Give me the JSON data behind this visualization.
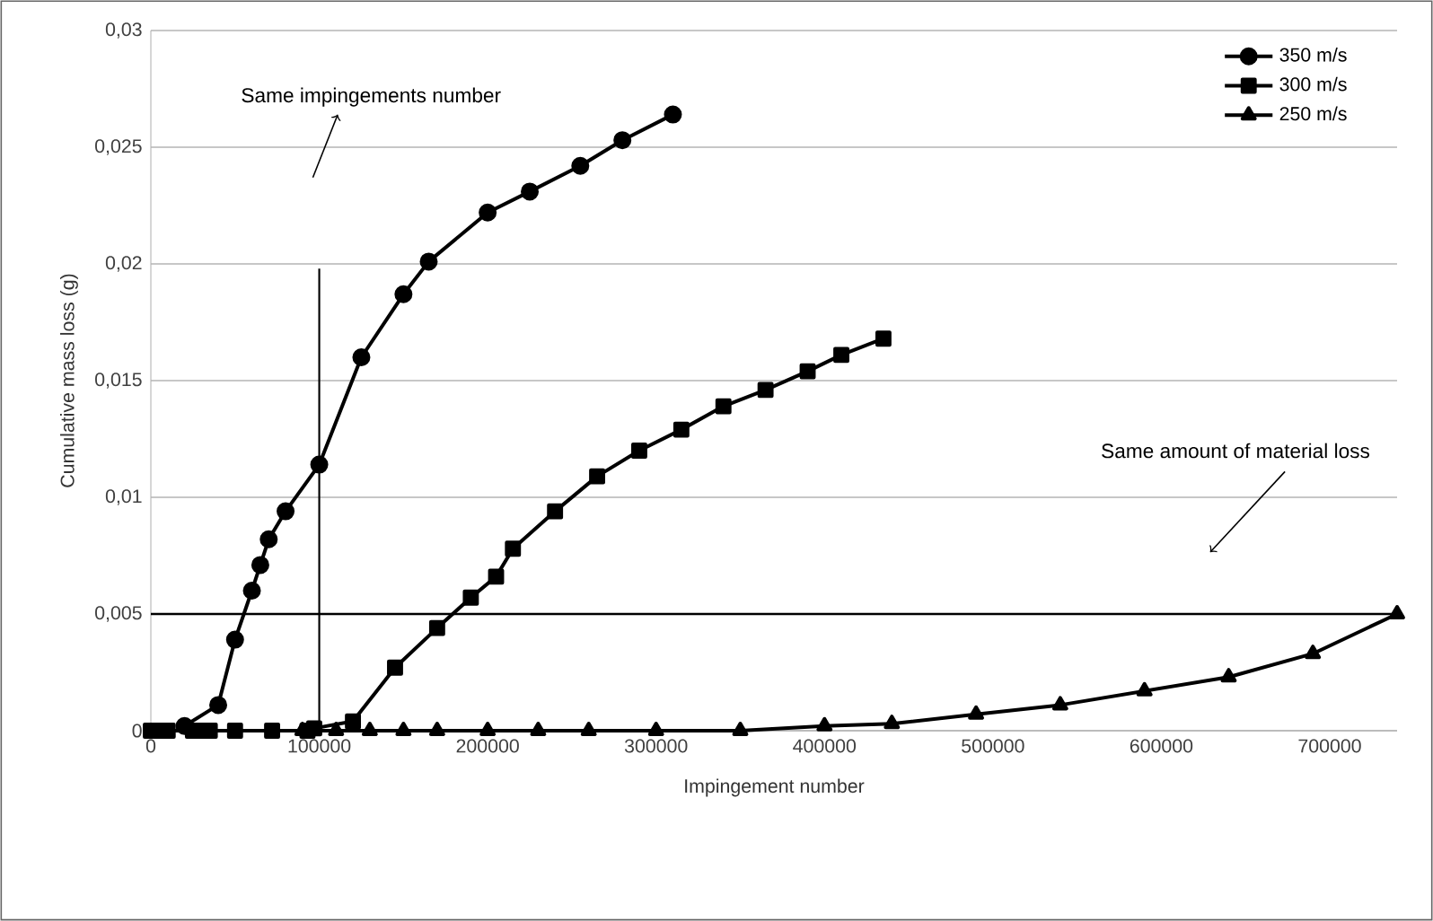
{
  "chart_data": {
    "type": "line",
    "xlabel": "Impingement number",
    "ylabel": "Cumulative mass loss (g)",
    "xlim": [
      0,
      740000
    ],
    "ylim": [
      0,
      0.03
    ],
    "xticks": [
      0,
      100000,
      200000,
      300000,
      400000,
      500000,
      600000,
      700000
    ],
    "yticks": [
      {
        "value": 0,
        "label": "0"
      },
      {
        "value": 0.005,
        "label": "0,005"
      },
      {
        "value": 0.01,
        "label": "0,01"
      },
      {
        "value": 0.015,
        "label": "0,015"
      },
      {
        "value": 0.02,
        "label": "0,02"
      },
      {
        "value": 0.025,
        "label": "0,025"
      },
      {
        "value": 0.03,
        "label": "0,03"
      }
    ],
    "grid": "y",
    "legend": "top right",
    "line_style": "solid",
    "series": [
      {
        "name": "350 m/s",
        "color": "#000000",
        "marker": "circle",
        "x": [
          20000,
          25000,
          40000,
          50000,
          60000,
          65000,
          70000,
          80000,
          100000,
          125000,
          150000,
          165000,
          200000,
          225000,
          255000,
          280000,
          310000
        ],
        "values": [
          0.0002,
          null,
          0.0011,
          0.0039,
          0.006,
          0.0071,
          0.0082,
          0.0094,
          0.0114,
          0.016,
          0.0187,
          0.0201,
          0.0222,
          0.0231,
          0.0242,
          0.0253,
          0.0264
        ]
      },
      {
        "name": "300 m/s",
        "color": "#000000",
        "marker": "square",
        "x": [
          0,
          5000,
          10000,
          25000,
          30000,
          35000,
          50000,
          72000,
          93000,
          97000,
          120000,
          145000,
          170000,
          190000,
          205000,
          215000,
          240000,
          265000,
          290000,
          315000,
          340000,
          365000,
          390000,
          410000,
          435000
        ],
        "values": [
          0,
          0,
          0,
          0,
          0,
          0,
          0,
          0,
          0,
          0.0001,
          0.0004,
          0.0027,
          0.0044,
          0.0057,
          0.0066,
          0.0078,
          0.0094,
          0.0109,
          0.012,
          0.0129,
          0.0139,
          0.0146,
          0.0154,
          0.0161,
          0.0168
        ]
      },
      {
        "name": "250 m/s",
        "color": "#000000",
        "marker": "triangle",
        "x": [
          90000,
          100000,
          110000,
          130000,
          150000,
          170000,
          200000,
          230000,
          260000,
          300000,
          350000,
          400000,
          440000,
          490000,
          540000,
          590000,
          640000,
          690000,
          740000
        ],
        "values": [
          0,
          null,
          0,
          0,
          0,
          0,
          0,
          0,
          0,
          0,
          0,
          0.0002,
          0.0003,
          0.0007,
          0.0011,
          0.0017,
          0.0023,
          0.0033,
          0.005
        ]
      }
    ],
    "ref_lines": [
      {
        "axis": "y",
        "value": 0.005,
        "color": "#000000"
      },
      {
        "axis": "x",
        "value": 100000,
        "color": "#000000"
      }
    ],
    "annotations": [
      "Same impingements number",
      "Same amount of material loss"
    ]
  }
}
